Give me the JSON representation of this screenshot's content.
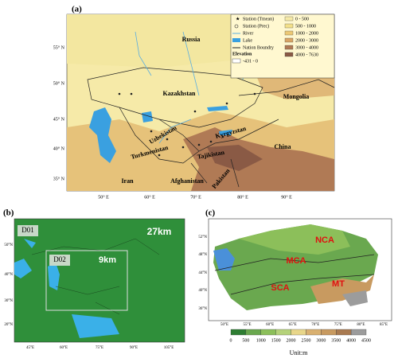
{
  "panel_a": {
    "label": "(a)",
    "countries": [
      "Russia",
      "Kazakhstan",
      "Mongolia",
      "Uzbekistan",
      "Kyrgyzstan",
      "Turkmenistan",
      "Tajikistan",
      "China",
      "Iran",
      "Afghanistan",
      "Pakistan"
    ],
    "lat_labels": [
      "55° N",
      "50° N",
      "45° N",
      "40° N",
      "35° N"
    ],
    "lon_labels": [
      "50° E",
      "60° E",
      "70° E",
      "80° E",
      "90° E"
    ],
    "legend": {
      "symbols": [
        "Station (Tmean)",
        "Station (Prec)",
        "River",
        "Lake",
        "Nation Boundry"
      ],
      "elevation_title": "Elevation",
      "elevation": [
        "-431 - 0",
        "0 - 500",
        "500 - 1000",
        "1000 - 2000",
        "2000 - 3000",
        "3000 - 4000",
        "4000 - 7630"
      ]
    }
  },
  "panel_b": {
    "label": "(b)",
    "d01": "D01",
    "d01_res": "27km",
    "d02": "D02",
    "d02_res": "9km",
    "lat_labels": [
      "50°N",
      "40°N",
      "30°N",
      "20°N"
    ],
    "lon_labels": [
      "45°E",
      "60°E",
      "75°E",
      "90°E",
      "105°E"
    ]
  },
  "panel_c": {
    "label": "(c)",
    "regions": [
      "NCA",
      "MCA",
      "SCA",
      "MT"
    ],
    "lat_labels": [
      "52°N",
      "48°N",
      "44°N",
      "40°N",
      "36°N"
    ],
    "lon_labels": [
      "50°E",
      "55°E",
      "60°E",
      "65°E",
      "70°E",
      "75°E",
      "80°E",
      "85°E"
    ],
    "colorbar_ticks": [
      "0",
      "500",
      "1000",
      "1500",
      "2000",
      "2500",
      "3000",
      "3500",
      "4000",
      "4500"
    ],
    "unit": "Unit:m"
  }
}
